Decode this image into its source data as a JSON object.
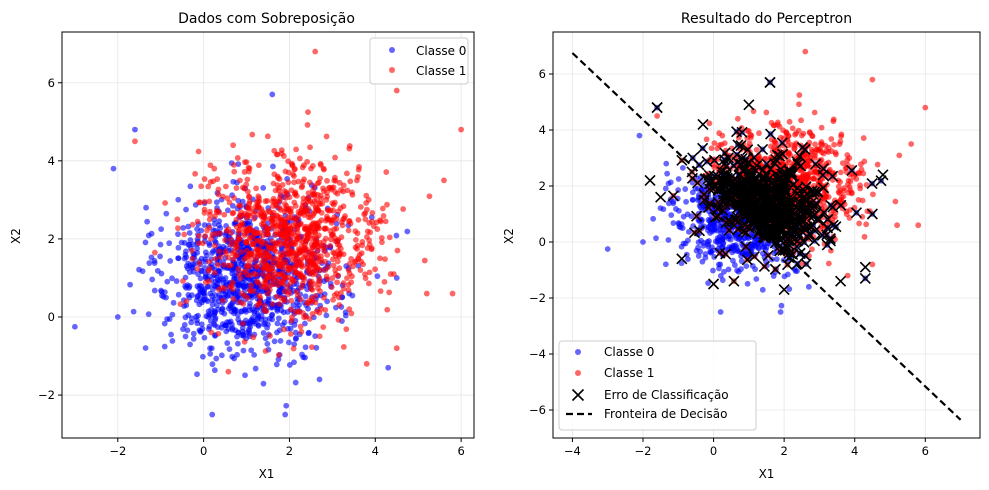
{
  "colors": {
    "class0": "#0000ff",
    "class1": "#ff0000",
    "error": "#000000",
    "boundary": "#000000",
    "grid": "#e6e6e6"
  },
  "chart_data": [
    {
      "type": "scatter",
      "title": "Dados com Sobreposição",
      "xlabel": "X1",
      "ylabel": "X2",
      "xlim": [
        -3.3,
        6.3
      ],
      "ylim": [
        -3.1,
        7.3
      ],
      "xticks": [
        -2,
        0,
        2,
        4,
        6
      ],
      "yticks": [
        -2,
        0,
        2,
        4,
        6
      ],
      "grid": true,
      "legend_position": "top-right",
      "series": [
        {
          "name": "Classe 0",
          "distribution": {
            "center": [
              1.0,
              1.0
            ],
            "spread": [
              1.0,
              1.0
            ],
            "count": 1000
          },
          "sample_points": [
            [
              -3.0,
              -0.25
            ],
            [
              -2.1,
              3.8
            ],
            [
              -1.6,
              4.8
            ],
            [
              0.2,
              -2.5
            ],
            [
              1.6,
              5.7
            ],
            [
              1.9,
              -2.5
            ],
            [
              4.3,
              -1.3
            ],
            [
              2.7,
              -1.6
            ],
            [
              -2.0,
              0.0
            ],
            [
              4.5,
              1.0
            ]
          ]
        },
        {
          "name": "Classe 1",
          "distribution": {
            "center": [
              2.0,
              2.0
            ],
            "spread": [
              1.0,
              1.0
            ],
            "count": 1000
          },
          "sample_points": [
            [
              6.0,
              4.8
            ],
            [
              5.8,
              0.6
            ],
            [
              2.6,
              6.8
            ],
            [
              4.5,
              5.8
            ],
            [
              5.6,
              3.5
            ],
            [
              -1.6,
              4.5
            ],
            [
              4.5,
              -0.8
            ],
            [
              3.8,
              -1.2
            ],
            [
              -0.4,
              0.4
            ],
            [
              5.2,
              0.6
            ]
          ]
        }
      ]
    },
    {
      "type": "scatter",
      "title": "Resultado do Perceptron",
      "xlabel": "X1",
      "ylabel": "X2",
      "xlim": [
        -4.55,
        7.55
      ],
      "ylim": [
        -7.0,
        7.5
      ],
      "xticks": [
        -4,
        -2,
        0,
        2,
        4,
        6
      ],
      "yticks": [
        -6,
        -4,
        -2,
        0,
        2,
        4,
        6
      ],
      "grid": true,
      "legend_position": "bottom-left",
      "series": [
        {
          "name": "Classe 0"
        },
        {
          "name": "Classe 1"
        },
        {
          "name": "Erro de Classificação",
          "sample_points": [
            [
              -1.6,
              4.8
            ],
            [
              1.0,
              4.9
            ],
            [
              1.6,
              5.7
            ],
            [
              -0.3,
              4.2
            ],
            [
              4.8,
              2.4
            ],
            [
              4.3,
              -0.9
            ],
            [
              -1.8,
              2.2
            ],
            [
              -0.9,
              -0.6
            ],
            [
              0.0,
              -1.5
            ],
            [
              2.0,
              -1.7
            ],
            [
              3.6,
              -1.4
            ],
            [
              -1.5,
              1.6
            ]
          ]
        },
        {
          "name": "Fronteira de Decisão",
          "line": [
            [
              -4.0,
              6.75
            ],
            [
              7.0,
              -6.35
            ]
          ]
        }
      ]
    }
  ]
}
